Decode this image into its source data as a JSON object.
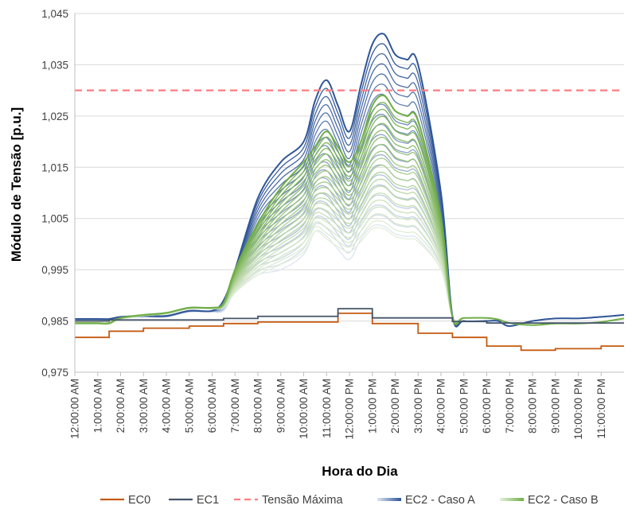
{
  "chart_data": {
    "type": "line",
    "xlabel": "Hora do Dia",
    "ylabel": "Módulo de Tensão [p.u.]",
    "ylim": [
      0.975,
      1.045
    ],
    "y_ticks": [
      0.975,
      0.985,
      0.995,
      1.005,
      1.015,
      1.025,
      1.035,
      1.045
    ],
    "y_tick_labels": [
      "0,975",
      "0,985",
      "0,995",
      "1,005",
      "1,015",
      "1,025",
      "1,035",
      "1,045"
    ],
    "x_tick_labels": [
      "12:00:00 AM",
      "1:00:00 AM",
      "2:00:00 AM",
      "3:00:00 AM",
      "4:00:00 AM",
      "5:00:00 AM",
      "6:00:00 AM",
      "7:00:00 AM",
      "8:00:00 AM",
      "9:00:00 AM",
      "10:00:00 AM",
      "11:00:00 AM",
      "12:00:00 PM",
      "1:00:00 PM",
      "2:00:00 PM",
      "3:00:00 PM",
      "4:00:00 PM",
      "5:00:00 PM",
      "6:00:00 PM",
      "7:00:00 PM",
      "8:00:00 PM",
      "9:00:00 PM",
      "10:00:00 PM",
      "11:00:00 PM"
    ],
    "grid": "horizontal",
    "legend_position": "bottom",
    "x_hours": [
      0,
      1,
      1.5,
      2,
      3,
      4,
      5,
      6,
      6.5,
      7,
      8,
      9,
      10,
      10.5,
      11,
      11.5,
      12,
      12.5,
      13,
      13.5,
      14,
      14.5,
      15,
      16,
      16.5,
      17,
      18,
      18.5,
      19,
      20,
      21,
      22,
      23,
      24
    ],
    "series": [
      {
        "name": "EC0",
        "color": "#C55A11",
        "dash": "none",
        "kind": "step",
        "points": [
          [
            0,
            0.9818
          ],
          [
            1.5,
            0.9818
          ],
          [
            1.5,
            0.983
          ],
          [
            3,
            0.983
          ],
          [
            3,
            0.9836
          ],
          [
            5,
            0.9836
          ],
          [
            5,
            0.984
          ],
          [
            6.5,
            0.984
          ],
          [
            6.5,
            0.9845
          ],
          [
            8,
            0.9845
          ],
          [
            8,
            0.9848
          ],
          [
            11.5,
            0.9848
          ],
          [
            11.5,
            0.9865
          ],
          [
            13,
            0.9865
          ],
          [
            13,
            0.9845
          ],
          [
            15,
            0.9845
          ],
          [
            15,
            0.9826
          ],
          [
            16.5,
            0.9826
          ],
          [
            16.5,
            0.9818
          ],
          [
            18,
            0.9818
          ],
          [
            18,
            0.9801
          ],
          [
            19.5,
            0.9801
          ],
          [
            19.5,
            0.9793
          ],
          [
            21,
            0.9793
          ],
          [
            21,
            0.9796
          ],
          [
            23,
            0.9796
          ],
          [
            23,
            0.9801
          ],
          [
            24,
            0.9801
          ]
        ]
      },
      {
        "name": "EC1",
        "color": "#44546A",
        "dash": "none",
        "kind": "step",
        "points": [
          [
            0,
            0.985
          ],
          [
            1.5,
            0.985
          ],
          [
            1.5,
            0.9852
          ],
          [
            6.5,
            0.9852
          ],
          [
            6.5,
            0.9855
          ],
          [
            8,
            0.9855
          ],
          [
            8,
            0.9859
          ],
          [
            11.5,
            0.9859
          ],
          [
            11.5,
            0.9874
          ],
          [
            13,
            0.9874
          ],
          [
            13,
            0.9856
          ],
          [
            16.5,
            0.9856
          ],
          [
            16.5,
            0.9849
          ],
          [
            18,
            0.9849
          ],
          [
            18,
            0.9846
          ],
          [
            24,
            0.9846
          ]
        ]
      },
      {
        "name": "Tensão Máxima",
        "color": "#FF7C80",
        "dash": "9,6",
        "kind": "line",
        "points": [
          [
            0,
            1.03
          ],
          [
            24,
            1.03
          ]
        ]
      },
      {
        "name": "EC2 - Caso A",
        "color": "#2F5597",
        "color_light": "#DDE5F1",
        "kind": "family",
        "members": 20,
        "dayValues": [
          0.9854,
          0.9854,
          0.9854,
          0.9858,
          0.986,
          0.986,
          0.987,
          0.987,
          0.989,
          0.995,
          1.009,
          1.016,
          1.02,
          1.028,
          1.032,
          1.027,
          1.022,
          1.031,
          1.039,
          1.041,
          1.037,
          1.036,
          1.035,
          1.01,
          0.986,
          0.985,
          0.985,
          0.985,
          0.984,
          0.985,
          0.9855,
          0.9855,
          0.9858,
          0.9862
        ],
        "minValues": [
          0.9852,
          0.9852,
          0.9852,
          0.9856,
          0.9858,
          0.9858,
          0.9868,
          0.9868,
          0.987,
          0.9905,
          0.994,
          0.995,
          0.998,
          1.0025,
          1.0015,
          0.999,
          0.997,
          1.001,
          1.0035,
          1.0035,
          1.002,
          1.0015,
          1.001,
          0.995,
          0.986,
          0.985,
          0.985,
          0.985,
          0.984,
          0.985,
          0.9855,
          0.9855,
          0.9858,
          0.9862
        ]
      },
      {
        "name": "EC2 - Caso B",
        "color": "#70AD47",
        "color_light": "#E3EFDA",
        "kind": "family",
        "members": 20,
        "dayValues": [
          0.9846,
          0.9846,
          0.9846,
          0.9856,
          0.9862,
          0.9866,
          0.9876,
          0.9876,
          0.9885,
          0.995,
          1.004,
          1.011,
          1.016,
          1.019,
          1.022,
          1.019,
          1.016,
          1.02,
          1.027,
          1.029,
          1.026,
          1.025,
          1.024,
          1.005,
          0.9858,
          0.9856,
          0.9856,
          0.9853,
          0.9846,
          0.9842,
          0.9845,
          0.9845,
          0.9848,
          0.9855
        ],
        "minValues": [
          0.9844,
          0.9844,
          0.9844,
          0.9854,
          0.986,
          0.9864,
          0.9874,
          0.9874,
          0.9876,
          0.9905,
          0.994,
          0.996,
          0.9985,
          1.0025,
          1.001,
          0.9995,
          0.9985,
          1.0005,
          1.003,
          1.003,
          1.0015,
          1.001,
          1.0005,
          0.995,
          0.9858,
          0.9856,
          0.9856,
          0.9853,
          0.9846,
          0.9842,
          0.9845,
          0.9845,
          0.9848,
          0.9855
        ]
      }
    ]
  }
}
